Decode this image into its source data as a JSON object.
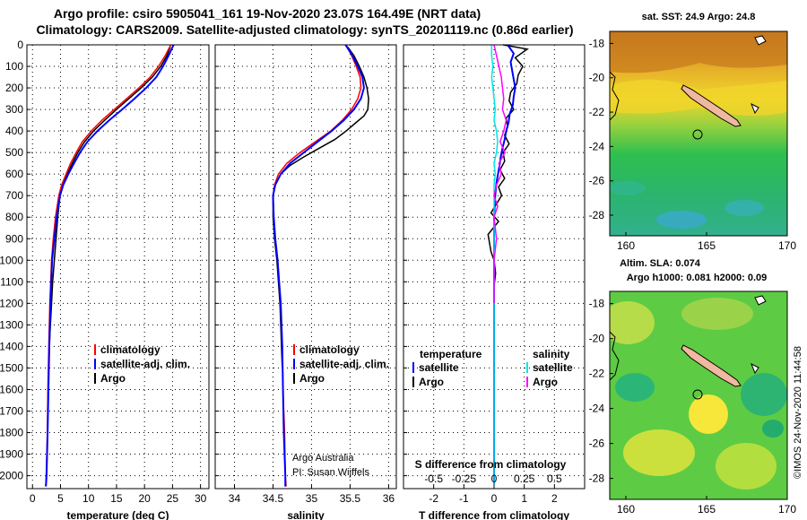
{
  "header": {
    "line1": "Argo profile: csiro 5905041_161 19-Nov-2020 23.07S 164.49E (NRT data)",
    "line2": "Climatology: CARS2009. Satellite-adjusted climatology: synTS_20201119.nc (0.86d earlier)"
  },
  "colors": {
    "argo": "#000000",
    "climatology": "#ff0000",
    "satellite": "#0000ff",
    "sat_temp_diff": "#00e5e5",
    "argo_sal_diff": "#ff00ff"
  },
  "depth_axis": {
    "ticks": [
      0,
      100,
      200,
      300,
      400,
      500,
      600,
      700,
      800,
      900,
      1000,
      1100,
      1200,
      1300,
      1400,
      1500,
      1600,
      1700,
      1800,
      1900,
      2000
    ],
    "range": [
      0,
      2060
    ]
  },
  "chart_data": [
    {
      "id": "temperature",
      "type": "line",
      "xlabel": "temperature (deg C)",
      "ylabel": "",
      "xlim": [
        -1,
        31.5
      ],
      "ylim": [
        2060,
        0
      ],
      "xticks": [
        0,
        5,
        10,
        15,
        20,
        25,
        30
      ],
      "xtick_labels": [
        "0",
        "5",
        "10",
        "15",
        "20",
        "25",
        "30"
      ],
      "legend": [
        "climatology",
        "satellite-adj. clim.",
        "Argo"
      ],
      "series": [
        {
          "name": "Argo",
          "color": "#000000",
          "x": [
            24.6,
            24.0,
            22.9,
            21.4,
            19.4,
            17.2,
            15.0,
            12.9,
            10.9,
            9.3,
            8.1,
            7.1,
            6.2,
            5.4,
            4.9,
            4.5,
            4.2,
            3.9,
            3.6,
            3.4,
            3.2,
            3.0,
            2.9,
            2.8,
            2.7
          ],
          "y": [
            10,
            50,
            100,
            150,
            200,
            250,
            300,
            350,
            400,
            450,
            500,
            550,
            600,
            650,
            700,
            800,
            900,
            1000,
            1100,
            1200,
            1300,
            1400,
            1500,
            1600,
            1700
          ]
        },
        {
          "name": "climatology",
          "color": "#ff0000",
          "x": [
            24.7,
            23.7,
            22.5,
            21.0,
            19.0,
            16.8,
            14.6,
            12.4,
            10.5,
            8.9,
            7.8,
            6.8,
            6.0,
            5.2,
            4.7,
            4.1,
            3.7,
            3.4,
            3.1,
            2.9,
            2.75,
            2.65,
            2.55,
            2.45,
            2.4,
            2.35
          ],
          "y": [
            0,
            50,
            100,
            150,
            200,
            250,
            300,
            350,
            400,
            450,
            500,
            550,
            600,
            650,
            700,
            800,
            900,
            1000,
            1200,
            1400,
            1600,
            1800,
            1900,
            2000,
            2030,
            2050
          ]
        },
        {
          "name": "satellite-adj. clim.",
          "color": "#0000ff",
          "x": [
            25.2,
            24.3,
            23.3,
            22.1,
            20.3,
            18.2,
            16.0,
            13.7,
            11.6,
            9.8,
            8.5,
            7.4,
            6.4,
            5.5,
            4.9,
            4.3,
            3.9,
            3.5,
            3.2,
            3.0,
            2.85,
            2.7,
            2.6,
            2.5,
            2.45,
            2.4
          ],
          "y": [
            0,
            50,
            100,
            150,
            200,
            250,
            300,
            350,
            400,
            450,
            500,
            550,
            600,
            650,
            700,
            800,
            900,
            1000,
            1200,
            1400,
            1600,
            1800,
            1900,
            2000,
            2030,
            2050
          ]
        }
      ]
    },
    {
      "id": "salinity",
      "type": "line",
      "xlabel": "salinity",
      "ylabel": "",
      "xlim": [
        33.75,
        36.1
      ],
      "ylim": [
        2060,
        0
      ],
      "xticks": [
        34,
        34.5,
        35,
        35.5,
        36
      ],
      "xtick_labels": [
        "34",
        "34.5",
        "35",
        "35.5",
        "36"
      ],
      "legend": [
        "climatology",
        "satellite-adj. clim.",
        "Argo"
      ],
      "annotation": [
        "Argo Australia",
        "PI: Susan Wijffels"
      ],
      "series": [
        {
          "name": "Argo",
          "color": "#000000",
          "x": [
            35.47,
            35.55,
            35.62,
            35.68,
            35.72,
            35.74,
            35.73,
            35.68,
            35.58,
            35.45,
            35.3,
            35.1,
            34.9,
            34.72,
            34.6,
            34.53,
            34.5,
            34.5,
            34.52,
            34.55,
            34.57,
            34.59,
            34.6,
            34.61,
            34.62
          ],
          "y": [
            10,
            50,
            100,
            150,
            200,
            250,
            300,
            330,
            360,
            400,
            440,
            480,
            520,
            560,
            600,
            650,
            700,
            800,
            900,
            1000,
            1100,
            1200,
            1300,
            1400,
            1500
          ]
        },
        {
          "name": "climatology",
          "color": "#ff0000",
          "x": [
            35.45,
            35.52,
            35.58,
            35.63,
            35.64,
            35.6,
            35.52,
            35.4,
            35.25,
            35.05,
            34.85,
            34.68,
            34.57,
            34.52,
            34.5,
            34.51,
            34.53,
            34.56,
            34.58,
            34.6,
            34.62,
            34.63,
            34.65,
            34.66,
            34.67
          ],
          "y": [
            0,
            50,
            100,
            150,
            200,
            250,
            300,
            350,
            400,
            450,
            500,
            550,
            600,
            650,
            700,
            800,
            900,
            1000,
            1100,
            1200,
            1400,
            1600,
            1800,
            2000,
            2050
          ]
        },
        {
          "name": "satellite-adj. clim.",
          "color": "#0000ff",
          "x": [
            35.44,
            35.53,
            35.6,
            35.66,
            35.68,
            35.64,
            35.55,
            35.42,
            35.26,
            35.08,
            34.9,
            34.72,
            34.6,
            34.53,
            34.5,
            34.51,
            34.53,
            34.56,
            34.58,
            34.6,
            34.62,
            34.63,
            34.64,
            34.66,
            34.66
          ],
          "y": [
            0,
            50,
            100,
            150,
            200,
            250,
            300,
            350,
            400,
            450,
            500,
            550,
            600,
            650,
            700,
            800,
            900,
            1000,
            1100,
            1200,
            1400,
            1600,
            1800,
            2000,
            2050
          ]
        }
      ]
    },
    {
      "id": "difference",
      "type": "line",
      "xlabel": "T difference from climatology",
      "ylabel": "",
      "xlim": [
        -3,
        3
      ],
      "ylim": [
        2060,
        0
      ],
      "xticks": [
        -2,
        -1,
        0,
        1,
        2
      ],
      "xtick_labels": [
        "-2",
        "-1",
        "0",
        "1",
        "2"
      ],
      "secondary_xticks": [
        -0.5,
        -0.25,
        0,
        0.25,
        0.5
      ],
      "secondary_xtick_labels": [
        "-0.5",
        "-0.25",
        "0",
        "0.25",
        "0.5"
      ],
      "secondary_xlabel": "S difference from climatology",
      "secondary_xlim": [
        -0.75,
        0.75
      ],
      "legend_temperature": {
        "title": "temperature",
        "items": [
          "satellite",
          "Argo"
        ]
      },
      "legend_salinity": {
        "title": "salinity",
        "items": [
          "satellite",
          "Argo"
        ]
      },
      "series": [
        {
          "name": "T Argo",
          "color": "#000000",
          "x": [
            0.3,
            1.1,
            0.7,
            0.95,
            0.8,
            0.75,
            0.55,
            0.5,
            0.65,
            0.4,
            0.45,
            0.35,
            0.5,
            0.3,
            0.35,
            0.2,
            0.35,
            0.15,
            0.25,
            -0.1,
            0.15,
            -0.2,
            -0.1,
            0.0,
            0.05,
            0.0
          ],
          "y": [
            0,
            20,
            60,
            100,
            140,
            180,
            220,
            260,
            300,
            340,
            380,
            420,
            460,
            500,
            540,
            580,
            620,
            660,
            700,
            780,
            820,
            880,
            960,
            1000,
            1060,
            1120
          ]
        },
        {
          "name": "T satellite",
          "color": "#0000ff",
          "x": [
            0.45,
            0.65,
            0.55,
            0.6,
            0.65,
            0.7,
            0.65,
            0.62,
            0.52,
            0.48,
            0.4,
            0.35,
            0.28,
            0.22,
            0.18,
            0.13,
            0.08,
            0.05,
            0.03,
            0.0,
            0.0,
            0.0,
            0.0,
            0.0,
            0.0,
            0.0
          ],
          "y": [
            0,
            40,
            80,
            120,
            160,
            200,
            240,
            280,
            320,
            360,
            400,
            440,
            480,
            520,
            560,
            600,
            640,
            680,
            720,
            800,
            900,
            1000,
            1200,
            1500,
            1800,
            2040
          ]
        },
        {
          "name": "S satellite",
          "color": "#00e5e5",
          "x": [
            -0.02,
            -0.02,
            -0.01,
            -0.02,
            -0.01,
            0.0,
            0.01,
            0.0,
            0.02,
            0.03,
            0.02,
            0.0,
            0.01,
            0.0,
            0.0,
            0.0,
            0.0,
            0.0,
            0.0,
            0.0
          ],
          "y": [
            0,
            50,
            100,
            150,
            200,
            250,
            300,
            350,
            400,
            450,
            500,
            550,
            600,
            650,
            700,
            800,
            1000,
            1400,
            1800,
            2040
          ]
        },
        {
          "name": "S Argo",
          "color": "#ff00ff",
          "x": [
            0.0,
            0.02,
            0.04,
            0.06,
            0.07,
            0.08,
            0.07,
            0.1,
            0.08,
            0.05,
            0.09,
            0.04,
            0.06,
            0.02,
            0.0,
            0.03,
            0.0,
            0.02,
            0.0,
            0.0,
            0.0
          ],
          "y": [
            0,
            50,
            100,
            150,
            200,
            250,
            300,
            350,
            400,
            450,
            500,
            550,
            600,
            650,
            700,
            750,
            800,
            900,
            1000,
            1100,
            1200
          ]
        }
      ]
    },
    {
      "id": "sst-map",
      "type": "heatmap",
      "title": "sat. SST: 24.9 Argo: 24.8",
      "xlim": [
        159,
        170
      ],
      "ylim": [
        -29.2,
        -17.3
      ],
      "xticks": [
        160,
        165,
        170
      ],
      "xtick_labels": [
        "160",
        "165",
        "170"
      ],
      "yticks": [
        -18,
        -20,
        -22,
        -24,
        -26,
        -28
      ],
      "ytick_labels": [
        "-18",
        "-20",
        "-22",
        "-24",
        "-26",
        "-28"
      ],
      "argo_position": {
        "lon": 164.49,
        "lat": -23.07
      }
    },
    {
      "id": "sla-map",
      "type": "heatmap",
      "title": "Altim. SLA: 0.074",
      "subtitle": "Argo h1000: 0.081 h2000: 0.09",
      "xlim": [
        159,
        170
      ],
      "ylim": [
        -29.2,
        -17.3
      ],
      "xticks": [
        160,
        165,
        170
      ],
      "xtick_labels": [
        "160",
        "165",
        "170"
      ],
      "yticks": [
        -18,
        -20,
        -22,
        -24,
        -26,
        -28
      ],
      "ytick_labels": [
        "-18",
        "-20",
        "-22",
        "-24",
        "-26",
        "-28"
      ],
      "argo_position": {
        "lon": 164.49,
        "lat": -23.07
      }
    }
  ],
  "credit": "©IMOS 24-Nov-2020 11:44:58"
}
